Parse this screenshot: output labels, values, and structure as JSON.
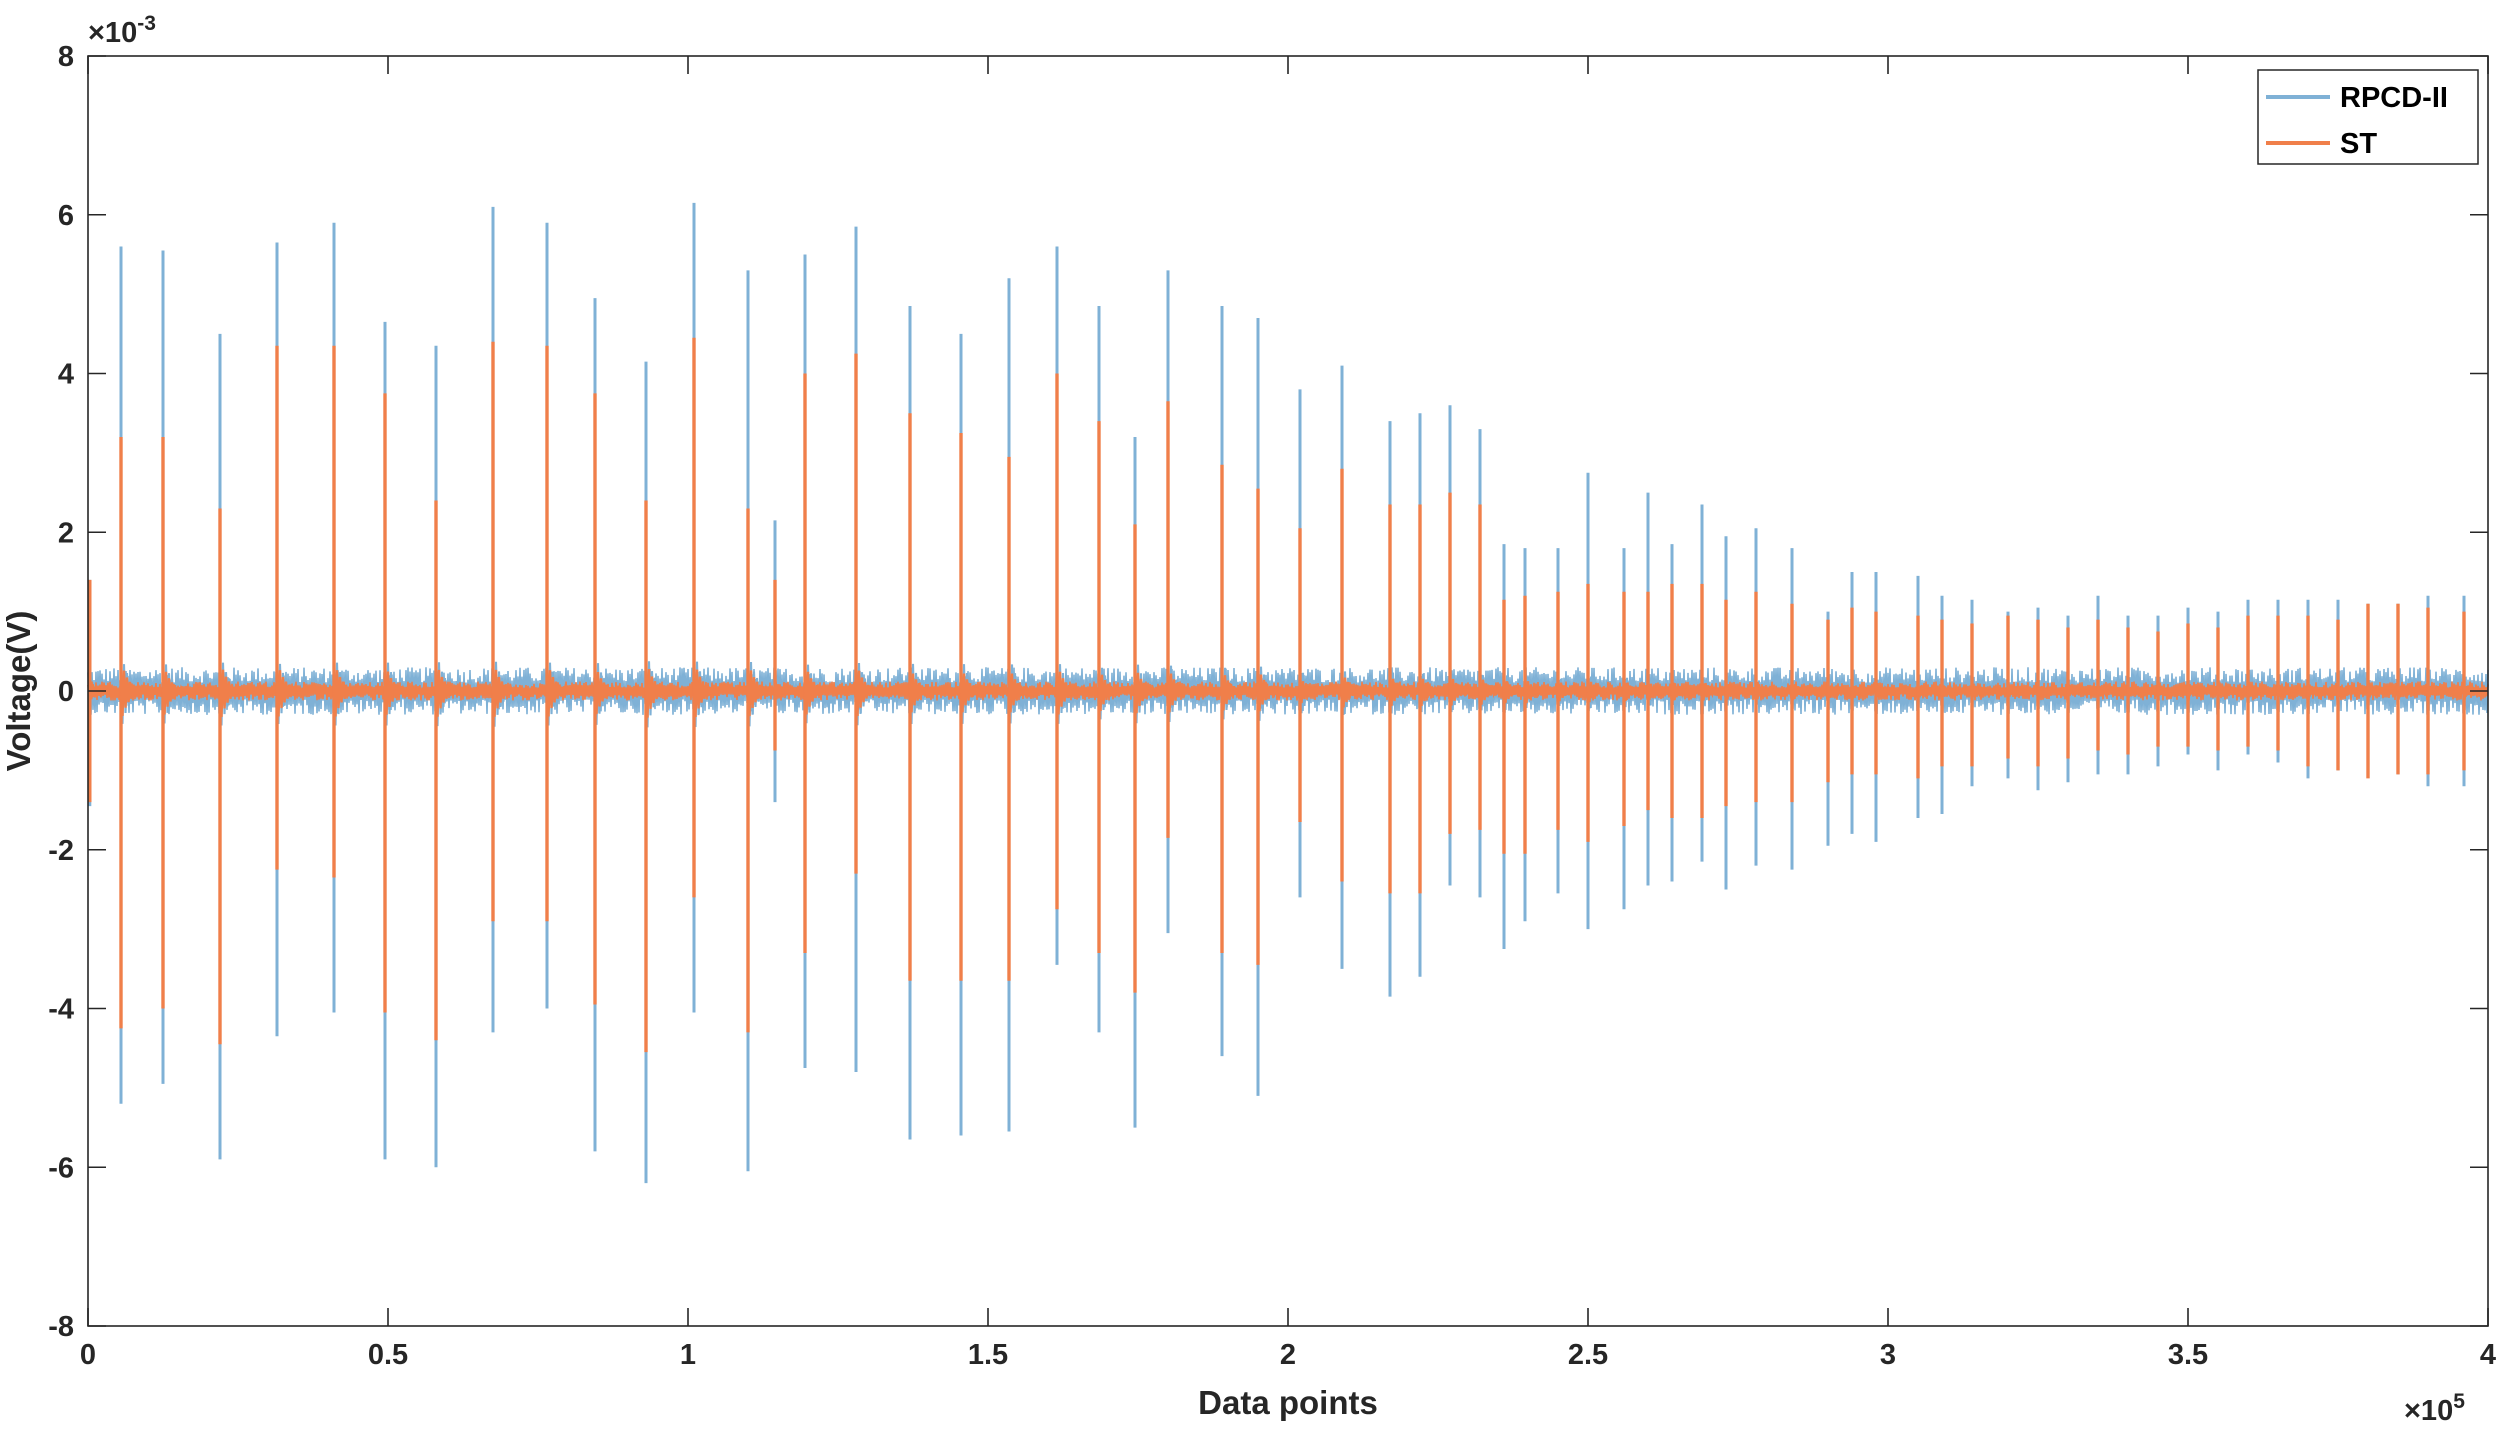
{
  "chart_data": {
    "type": "line",
    "xlabel": "Data points",
    "ylabel": "Voltage(V)",
    "x_multiplier_label": "×10",
    "x_multiplier_exp": "5",
    "y_multiplier_label": "×10",
    "y_multiplier_exp": "-3",
    "xlim": [
      0,
      4
    ],
    "ylim": [
      -8,
      8
    ],
    "x_ticks": [
      0,
      0.5,
      1,
      1.5,
      2,
      2.5,
      3,
      3.5,
      4
    ],
    "x_tick_labels": [
      "0",
      "0.5",
      "1",
      "1.5",
      "2",
      "2.5",
      "3",
      "3.5",
      "4"
    ],
    "y_ticks": [
      -8,
      -6,
      -4,
      -2,
      0,
      2,
      4,
      6,
      8
    ],
    "y_tick_labels": [
      "-8",
      "-6",
      "-4",
      "-2",
      "0",
      "2",
      "4",
      "6",
      "8"
    ],
    "grid": false,
    "legend_position": "top-right",
    "colors": {
      "RPCD-II": "#7fb1d6",
      "ST": "#f07f4a",
      "axis": "#262626"
    },
    "series": [
      {
        "name": "RPCD-II",
        "noise_band": 0.3
      },
      {
        "name": "ST",
        "noise_band": 0.12
      }
    ],
    "spikes": {
      "x": [
        0.003,
        0.055,
        0.125,
        0.22,
        0.315,
        0.41,
        0.495,
        0.58,
        0.675,
        0.765,
        0.845,
        0.93,
        1.01,
        1.1,
        1.145,
        1.195,
        1.28,
        1.37,
        1.455,
        1.535,
        1.615,
        1.685,
        1.745,
        1.8,
        1.89,
        1.95,
        2.02,
        2.09,
        2.17,
        2.22,
        2.27,
        2.32,
        2.36,
        2.395,
        2.45,
        2.5,
        2.56,
        2.6,
        2.64,
        2.69,
        2.73,
        2.78,
        2.84,
        2.9,
        2.94,
        2.98,
        3.05,
        3.09,
        3.14,
        3.2,
        3.25,
        3.3,
        3.35,
        3.4,
        3.45,
        3.5,
        3.55,
        3.6,
        3.65,
        3.7,
        3.75,
        3.8,
        3.85,
        3.9,
        3.96
      ],
      "RPCD-II_max": [
        1.4,
        5.6,
        5.55,
        4.5,
        5.65,
        5.9,
        4.65,
        4.35,
        6.1,
        5.9,
        4.95,
        4.15,
        6.15,
        5.3,
        2.15,
        5.5,
        5.85,
        4.85,
        4.5,
        5.2,
        5.6,
        4.85,
        3.2,
        5.3,
        4.85,
        4.7,
        3.8,
        4.1,
        3.4,
        3.5,
        3.6,
        3.3,
        1.85,
        1.8,
        1.8,
        2.75,
        1.8,
        2.5,
        1.85,
        2.35,
        1.95,
        2.05,
        1.8,
        1.0,
        1.5,
        1.5,
        1.45,
        1.2,
        1.15,
        1.0,
        1.05,
        0.95,
        1.2,
        0.95,
        0.95,
        1.05,
        1.0,
        1.15,
        1.15,
        1.15,
        1.15,
        1.1,
        1.1,
        1.2,
        1.2
      ],
      "RPCD-II_min": [
        -1.45,
        -5.2,
        -4.95,
        -5.9,
        -4.35,
        -4.05,
        -5.9,
        -6.0,
        -4.3,
        -4.0,
        -5.8,
        -6.2,
        -4.05,
        -6.05,
        -1.4,
        -4.75,
        -4.8,
        -5.65,
        -5.6,
        -5.55,
        -3.45,
        -4.3,
        -5.5,
        -3.05,
        -4.6,
        -5.1,
        -2.6,
        -3.5,
        -3.85,
        -3.6,
        -2.45,
        -2.6,
        -3.25,
        -2.9,
        -2.55,
        -3.0,
        -2.75,
        -2.45,
        -2.4,
        -2.15,
        -2.5,
        -2.2,
        -2.25,
        -1.95,
        -1.8,
        -1.9,
        -1.6,
        -1.55,
        -1.2,
        -1.1,
        -1.25,
        -1.15,
        -1.05,
        -1.05,
        -0.95,
        -0.8,
        -1.0,
        -0.8,
        -0.9,
        -1.1,
        -1.0,
        -1.05,
        -1.05,
        -1.2,
        -1.2
      ],
      "ST_max": [
        1.4,
        3.2,
        3.2,
        2.3,
        4.35,
        4.35,
        3.75,
        2.4,
        4.4,
        4.35,
        3.75,
        2.4,
        4.45,
        2.3,
        1.4,
        4.0,
        4.25,
        3.5,
        3.25,
        2.95,
        4.0,
        3.4,
        2.1,
        3.65,
        2.85,
        2.55,
        2.05,
        2.8,
        2.35,
        2.35,
        2.5,
        2.35,
        1.15,
        1.2,
        1.25,
        1.35,
        1.25,
        1.25,
        1.35,
        1.35,
        1.15,
        1.25,
        1.1,
        0.9,
        1.05,
        1.0,
        0.95,
        0.9,
        0.85,
        0.95,
        0.9,
        0.8,
        0.9,
        0.8,
        0.75,
        0.85,
        0.8,
        0.95,
        0.95,
        0.95,
        0.9,
        1.1,
        1.1,
        1.05,
        1.0
      ],
      "ST_min": [
        -1.4,
        -4.25,
        -4.0,
        -4.45,
        -2.25,
        -2.35,
        -4.05,
        -4.4,
        -2.9,
        -2.9,
        -3.95,
        -4.55,
        -2.6,
        -4.3,
        -0.75,
        -3.3,
        -2.3,
        -3.65,
        -3.65,
        -3.65,
        -2.75,
        -3.3,
        -3.8,
        -1.85,
        -3.3,
        -3.45,
        -1.65,
        -2.4,
        -2.55,
        -2.55,
        -1.8,
        -1.75,
        -2.05,
        -2.05,
        -1.75,
        -1.9,
        -1.7,
        -1.5,
        -1.6,
        -1.6,
        -1.45,
        -1.4,
        -1.4,
        -1.15,
        -1.05,
        -1.05,
        -1.1,
        -0.95,
        -0.95,
        -0.85,
        -0.95,
        -0.85,
        -0.75,
        -0.8,
        -0.7,
        -0.7,
        -0.75,
        -0.7,
        -0.75,
        -0.95,
        -1.0,
        -1.1,
        -1.05,
        -1.05,
        -1.0
      ]
    }
  }
}
